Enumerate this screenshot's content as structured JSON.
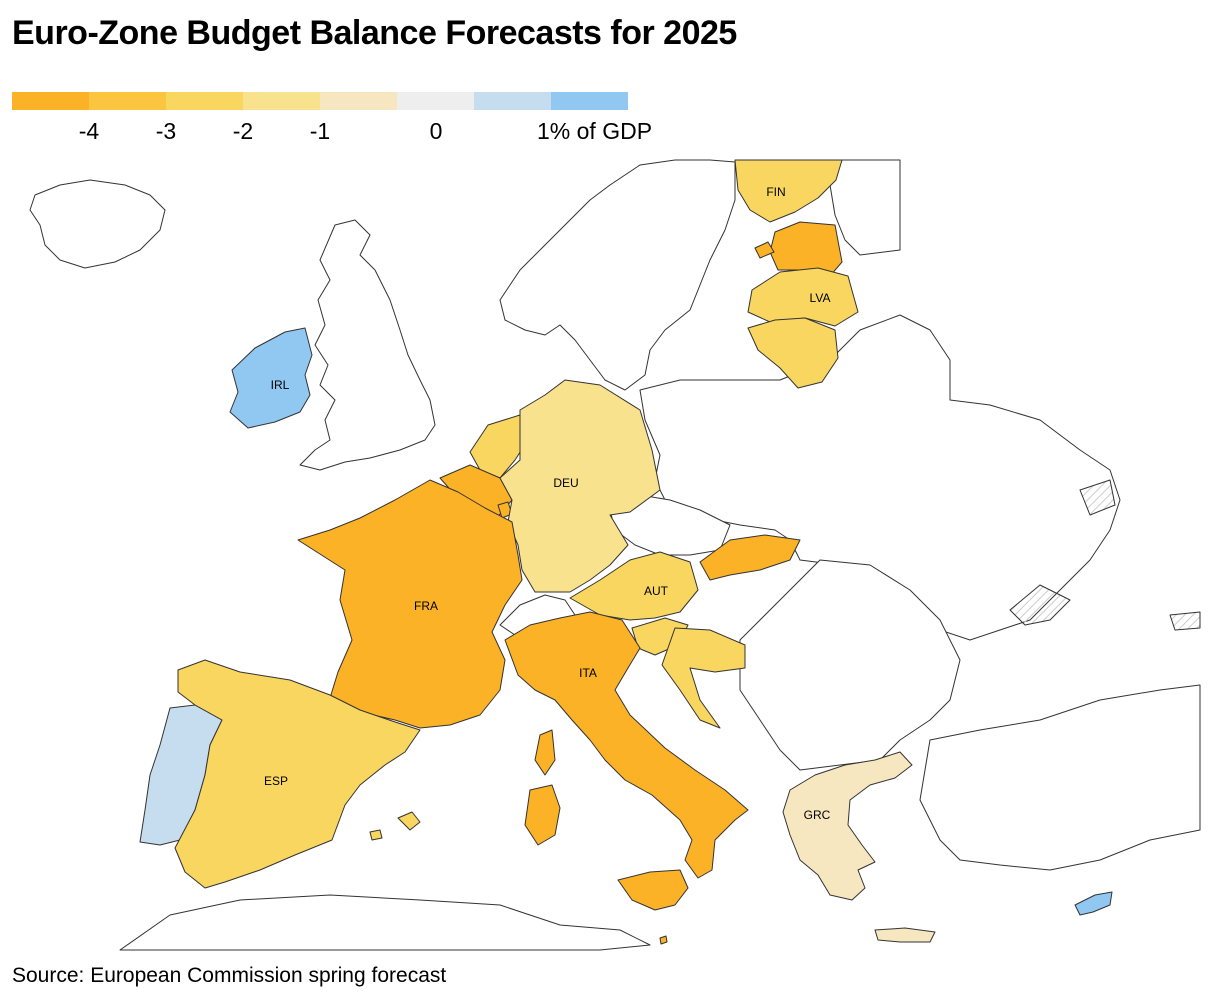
{
  "title": "Euro-Zone Budget Balance Forecasts for 2025",
  "legend": {
    "swatches": [
      "#fcb226",
      "#fbc540",
      "#f8d660",
      "#f8e28e",
      "#f7e7c0",
      "#eeeeee",
      "#c5ddef",
      "#90c8f2"
    ],
    "labels": [
      "-4",
      "-3",
      "-2",
      "-1",
      "0",
      "1% of GDP"
    ]
  },
  "countries": {
    "fin": {
      "label": "FIN"
    },
    "lva": {
      "label": "LVA"
    },
    "irl": {
      "label": "IRL"
    },
    "deu": {
      "label": "DEU"
    },
    "aut": {
      "label": "AUT"
    },
    "fra": {
      "label": "FRA"
    },
    "ita": {
      "label": "ITA"
    },
    "esp": {
      "label": "ESP"
    },
    "grc": {
      "label": "GRC"
    }
  },
  "colors": {
    "deficit_over_4": "#fcb226",
    "deficit_3_4": "#fbc540",
    "deficit_2_3": "#f8d660",
    "deficit_1_2": "#f8e28e",
    "deficit_0_1": "#f7e7c0",
    "surplus_1": "#90c8f2",
    "surplus_0_1": "#c5ddef",
    "non_euro": "#ffffff",
    "border": "#333333"
  },
  "source": "Source: European Commission spring forecast"
}
